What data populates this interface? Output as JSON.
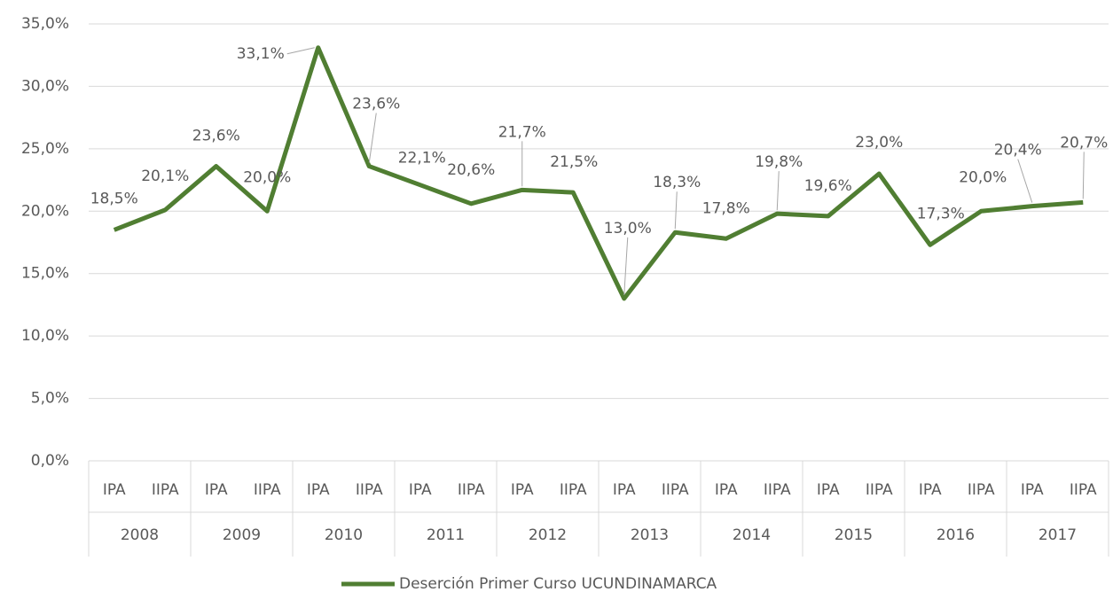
{
  "chart_data": {
    "type": "line",
    "categories": [
      "IPA",
      "IIPA",
      "IPA",
      "IIPA",
      "IPA",
      "IIPA",
      "IPA",
      "IIPA",
      "IPA",
      "IIPA",
      "IPA",
      "IIPA",
      "IPA",
      "IIPA",
      "IPA",
      "IIPA",
      "IPA",
      "IIPA",
      "IPA",
      "IIPA"
    ],
    "category_groups": [
      "2008",
      "2009",
      "2010",
      "2011",
      "2012",
      "2013",
      "2014",
      "2015",
      "2016",
      "2017"
    ],
    "series": [
      {
        "name": "Deserción Primer Curso UCUNDINAMARCA",
        "color": "#507e32",
        "values": [
          18.5,
          20.1,
          23.6,
          20.0,
          33.1,
          23.6,
          22.1,
          20.6,
          21.7,
          21.5,
          13.0,
          18.3,
          17.8,
          19.8,
          19.6,
          23.0,
          17.3,
          20.0,
          20.4,
          20.7
        ],
        "value_labels": [
          "18,5%",
          "20,1%",
          "23,6%",
          "20,0%",
          "33,1%",
          "23,6%",
          "22,1%",
          "20,6%",
          "21,7%",
          "21,5%",
          "13,0%",
          "18,3%",
          "17,8%",
          "19,8%",
          "19,6%",
          "23,0%",
          "17,3%",
          "20,0%",
          "20,4%",
          "20,7%"
        ]
      }
    ],
    "ylim": [
      0,
      35
    ],
    "yticks": [
      {
        "value": 0,
        "label": "0,0%"
      },
      {
        "value": 5,
        "label": "5,0%"
      },
      {
        "value": 10,
        "label": "10,0%"
      },
      {
        "value": 15,
        "label": "15,0%"
      },
      {
        "value": 20,
        "label": "20,0%"
      },
      {
        "value": 25,
        "label": "25,0%"
      },
      {
        "value": 30,
        "label": "30,0%"
      },
      {
        "value": 35,
        "label": "35,0%"
      }
    ],
    "grid": true,
    "legend": "bottom"
  }
}
